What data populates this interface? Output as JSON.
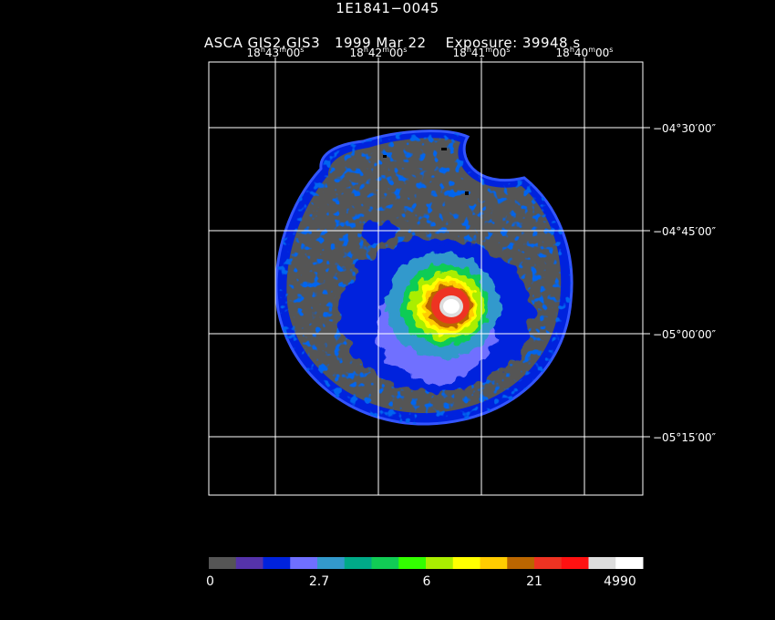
{
  "header": {
    "object": "1E1841−0045",
    "instrument": "ASCA GIS2,GIS3",
    "date": "1999 Mar 22",
    "exposure": "Exposure: 39948 s"
  },
  "ra_ticks": [
    {
      "h": "18",
      "m": "43",
      "s": "00"
    },
    {
      "h": "18",
      "m": "42",
      "s": "00"
    },
    {
      "h": "18",
      "m": "41",
      "s": "00"
    },
    {
      "h": "18",
      "m": "40",
      "s": "00"
    }
  ],
  "dec_ticks": [
    "−04°30′00″",
    "−04°45′00″",
    "−05°00′00″",
    "−05°15′00″"
  ],
  "colorbar": {
    "colors": [
      "#555555",
      "#5533aa",
      "#0022dd",
      "#6f6fff",
      "#3399cc",
      "#00aa88",
      "#11cc55",
      "#33ff00",
      "#aaee00",
      "#ffff00",
      "#ffcc00",
      "#bb6600",
      "#ee3322",
      "#ff1111",
      "#dddddd",
      "#ffffff"
    ],
    "labels": [
      "0",
      "2.7",
      "6",
      "21",
      "4990"
    ]
  }
}
